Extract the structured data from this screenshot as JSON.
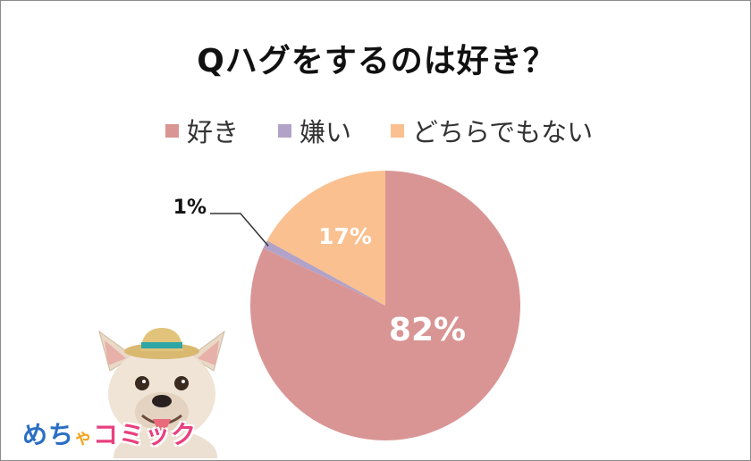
{
  "title": "Qハグをするのは好き？",
  "legend": [
    {
      "label": "好き",
      "color": "#d99594"
    },
    {
      "label": "嫌い",
      "color": "#b3a2c7"
    },
    {
      "label": "どちらでもない",
      "color": "#fac090"
    }
  ],
  "chart_data": {
    "type": "pie",
    "title": "Qハグをするのは好き？",
    "categories": [
      "好き",
      "嫌い",
      "どちらでもない"
    ],
    "values": [
      82,
      1,
      17
    ],
    "unit": "%",
    "data_labels": [
      "82%",
      "1%",
      "17%"
    ],
    "colors": [
      "#d99594",
      "#b3a2c7",
      "#fac090"
    ],
    "legend_position": "top"
  },
  "logo": {
    "part1": "めち",
    "part2": "ゃ",
    "part3": "コミック"
  },
  "mascot_icon": "dog-with-straw-hat-icon"
}
